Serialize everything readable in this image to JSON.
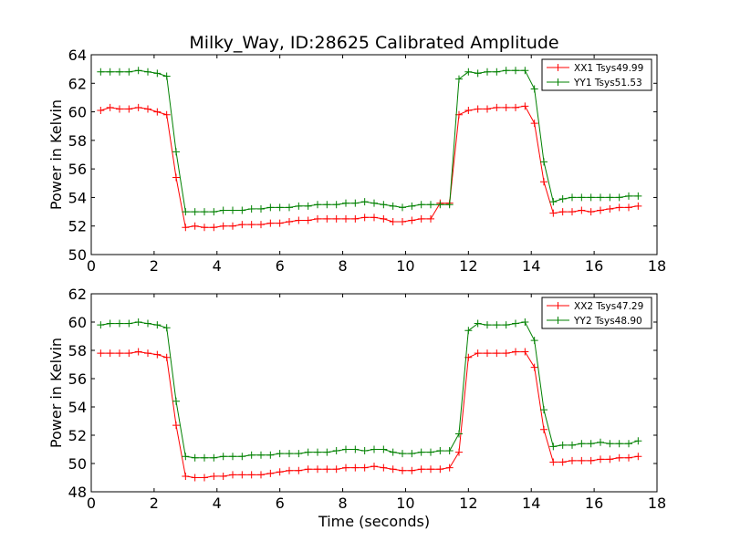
{
  "title": "Milky_Way, ID:28625 Calibrated Amplitude",
  "chart_data": [
    {
      "type": "line",
      "ylabel": "Power in Kelvin",
      "xlabel": "",
      "xlim": [
        0,
        18
      ],
      "ylim": [
        50,
        64
      ],
      "xticks": [
        "0",
        "2",
        "4",
        "6",
        "8",
        "10",
        "12",
        "14",
        "16",
        "18"
      ],
      "yticks": [
        "50",
        "52",
        "54",
        "56",
        "58",
        "60",
        "62",
        "64"
      ],
      "grid": false,
      "legend": "top-right",
      "x": [
        0.3,
        0.6,
        0.9,
        1.2,
        1.5,
        1.8,
        2.1,
        2.4,
        2.7,
        3.0,
        3.3,
        3.6,
        3.9,
        4.2,
        4.5,
        4.8,
        5.1,
        5.4,
        5.7,
        6.0,
        6.3,
        6.6,
        6.9,
        7.2,
        7.5,
        7.8,
        8.1,
        8.4,
        8.7,
        9.0,
        9.3,
        9.6,
        9.9,
        10.2,
        10.5,
        10.8,
        11.1,
        11.4,
        11.7,
        12.0,
        12.3,
        12.6,
        12.9,
        13.2,
        13.5,
        13.8,
        14.1,
        14.4,
        14.7,
        15.0,
        15.3,
        15.6,
        15.9,
        16.2,
        16.5,
        16.8,
        17.1,
        17.4
      ],
      "series": [
        {
          "name": "XX1 Tsys49.99",
          "color": "#ff0000",
          "values": [
            60.1,
            60.3,
            60.2,
            60.2,
            60.3,
            60.2,
            60.0,
            59.8,
            55.4,
            51.9,
            52.0,
            51.9,
            51.9,
            52.0,
            52.0,
            52.1,
            52.1,
            52.1,
            52.2,
            52.2,
            52.3,
            52.4,
            52.4,
            52.5,
            52.5,
            52.5,
            52.5,
            52.5,
            52.6,
            52.6,
            52.5,
            52.3,
            52.3,
            52.4,
            52.5,
            52.5,
            53.6,
            53.6,
            59.8,
            60.1,
            60.2,
            60.2,
            60.3,
            60.3,
            60.3,
            60.4,
            59.2,
            55.1,
            52.9,
            53.0,
            53.0,
            53.1,
            53.0,
            53.1,
            53.2,
            53.3,
            53.3,
            53.4
          ],
          "_x_note": "x shared"
        },
        {
          "name": "YY1 Tsys51.53",
          "color": "#008000",
          "values": [
            62.8,
            62.8,
            62.8,
            62.8,
            62.9,
            62.8,
            62.7,
            62.5,
            57.2,
            53.0,
            53.0,
            53.0,
            53.0,
            53.1,
            53.1,
            53.1,
            53.2,
            53.2,
            53.3,
            53.3,
            53.3,
            53.4,
            53.4,
            53.5,
            53.5,
            53.5,
            53.6,
            53.6,
            53.7,
            53.6,
            53.5,
            53.4,
            53.3,
            53.4,
            53.5,
            53.5,
            53.5,
            53.5,
            62.3,
            62.8,
            62.7,
            62.8,
            62.8,
            62.9,
            62.9,
            62.9,
            61.6,
            56.5,
            53.7,
            53.9,
            54.0,
            54.0,
            54.0,
            54.0,
            54.0,
            54.0,
            54.1,
            54.1
          ]
        }
      ]
    },
    {
      "type": "line",
      "ylabel": "Power in Kelvin",
      "xlabel": "Time (seconds)",
      "xlim": [
        0,
        18
      ],
      "ylim": [
        48,
        62
      ],
      "xticks": [
        "0",
        "2",
        "4",
        "6",
        "8",
        "10",
        "12",
        "14",
        "16",
        "18"
      ],
      "yticks": [
        "48",
        "50",
        "52",
        "54",
        "56",
        "58",
        "60",
        "62"
      ],
      "grid": false,
      "legend": "top-right",
      "x": [
        0.3,
        0.6,
        0.9,
        1.2,
        1.5,
        1.8,
        2.1,
        2.4,
        2.7,
        3.0,
        3.3,
        3.6,
        3.9,
        4.2,
        4.5,
        4.8,
        5.1,
        5.4,
        5.7,
        6.0,
        6.3,
        6.6,
        6.9,
        7.2,
        7.5,
        7.8,
        8.1,
        8.4,
        8.7,
        9.0,
        9.3,
        9.6,
        9.9,
        10.2,
        10.5,
        10.8,
        11.1,
        11.4,
        11.7,
        12.0,
        12.3,
        12.6,
        12.9,
        13.2,
        13.5,
        13.8,
        14.1,
        14.4,
        14.7,
        15.0,
        15.3,
        15.6,
        15.9,
        16.2,
        16.5,
        16.8,
        17.1,
        17.4
      ],
      "series": [
        {
          "name": "XX2 Tsys47.29",
          "color": "#ff0000",
          "values": [
            57.8,
            57.8,
            57.8,
            57.8,
            57.9,
            57.8,
            57.7,
            57.5,
            52.7,
            49.1,
            49.0,
            49.0,
            49.1,
            49.1,
            49.2,
            49.2,
            49.2,
            49.2,
            49.3,
            49.4,
            49.5,
            49.5,
            49.6,
            49.6,
            49.6,
            49.6,
            49.7,
            49.7,
            49.7,
            49.8,
            49.7,
            49.6,
            49.5,
            49.5,
            49.6,
            49.6,
            49.6,
            49.7,
            50.8,
            57.5,
            57.8,
            57.8,
            57.8,
            57.8,
            57.9,
            57.9,
            56.8,
            52.4,
            50.1,
            50.1,
            50.2,
            50.2,
            50.2,
            50.3,
            50.3,
            50.4,
            50.4,
            50.5
          ]
        },
        {
          "name": "YY2 Tsys48.90",
          "color": "#008000",
          "values": [
            59.8,
            59.9,
            59.9,
            59.9,
            60.0,
            59.9,
            59.8,
            59.6,
            54.4,
            50.5,
            50.4,
            50.4,
            50.4,
            50.5,
            50.5,
            50.5,
            50.6,
            50.6,
            50.6,
            50.7,
            50.7,
            50.7,
            50.8,
            50.8,
            50.8,
            50.9,
            51.0,
            51.0,
            50.9,
            51.0,
            51.0,
            50.8,
            50.7,
            50.7,
            50.8,
            50.8,
            50.9,
            50.9,
            52.1,
            59.4,
            59.9,
            59.8,
            59.8,
            59.8,
            59.9,
            60.0,
            58.7,
            53.8,
            51.2,
            51.3,
            51.3,
            51.4,
            51.4,
            51.5,
            51.4,
            51.4,
            51.4,
            51.6
          ]
        }
      ]
    }
  ]
}
